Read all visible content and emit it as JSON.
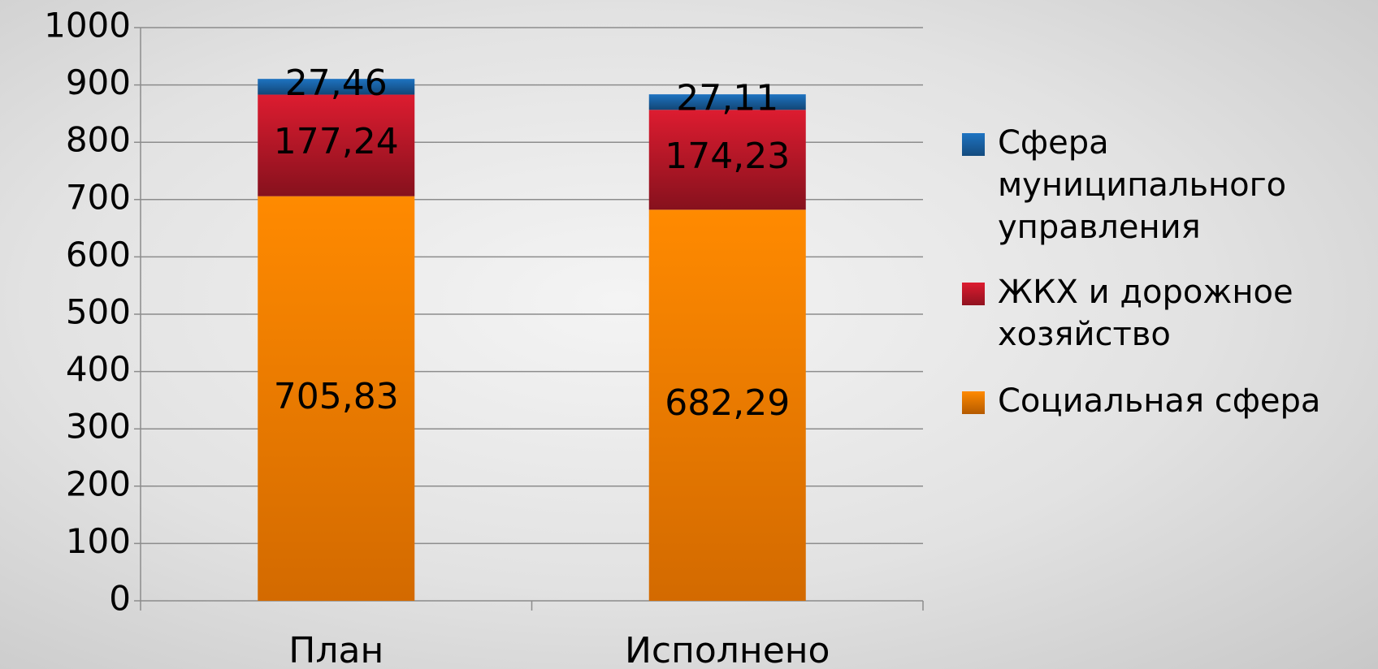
{
  "chart_data": {
    "type": "stacked_bar",
    "categories": [
      "План",
      "Исполнено"
    ],
    "series": [
      {
        "name": "Социальная сфера",
        "color": "#f07800",
        "values": [
          705.83,
          682.29
        ],
        "value_labels": [
          "705,83",
          "682,29"
        ]
      },
      {
        "name": "ЖКХ и дорожное хозяйство",
        "color": "#c0182a",
        "values": [
          177.24,
          174.23
        ],
        "value_labels": [
          "177,24",
          "174,23"
        ]
      },
      {
        "name": "Сфера муниципального управления",
        "color": "#1a64a8",
        "values": [
          27.46,
          27.11
        ],
        "value_labels": [
          "27,46",
          "27,11"
        ]
      }
    ],
    "ylim": [
      0,
      1000
    ],
    "yticks": [
      0,
      100,
      200,
      300,
      400,
      500,
      600,
      700,
      800,
      900,
      1000
    ],
    "grid": true,
    "legend": "right"
  }
}
